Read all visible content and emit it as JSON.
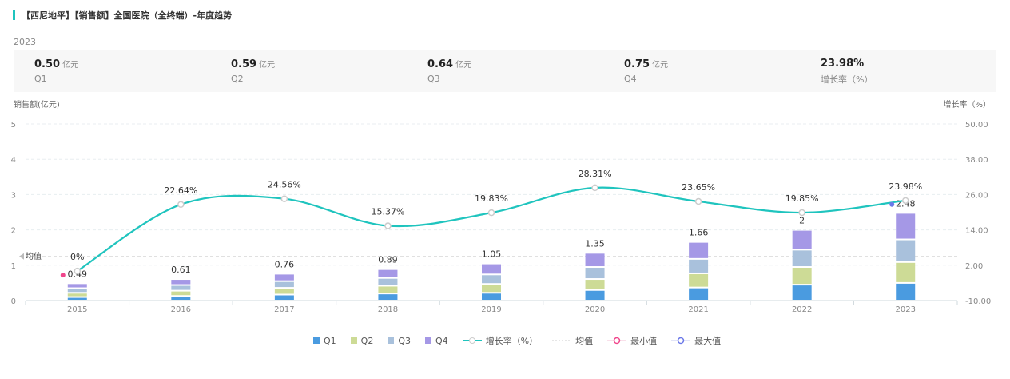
{
  "title": "【西尼地平】【销售额】全国医院（全终端）-年度趋势",
  "summary": {
    "year": "2023",
    "unit": "亿元",
    "items": [
      {
        "value": "0.50",
        "unit": "亿元",
        "label": "Q1"
      },
      {
        "value": "0.59",
        "unit": "亿元",
        "label": "Q2"
      },
      {
        "value": "0.64",
        "unit": "亿元",
        "label": "Q3"
      },
      {
        "value": "0.75",
        "unit": "亿元",
        "label": "Q4"
      },
      {
        "value": "23.98%",
        "unit": "",
        "label": "增长率（%）"
      }
    ]
  },
  "chart_data": {
    "type": "bar",
    "ylabel": "销售额(亿元)",
    "y2label": "增长率（%）",
    "ylim": [
      0,
      5
    ],
    "yticks": [
      "0",
      "1",
      "2",
      "3",
      "4",
      "5"
    ],
    "y2lim": [
      -10,
      50
    ],
    "y2ticks": [
      "-10.00",
      "2.00",
      "14.00",
      "26.00",
      "38.00",
      "50.00"
    ],
    "categories": [
      "2015",
      "2016",
      "2017",
      "2018",
      "2019",
      "2020",
      "2021",
      "2022",
      "2023"
    ],
    "series": [
      {
        "name": "Q1",
        "color": "#4a9be0",
        "values": [
          0.1,
          0.13,
          0.17,
          0.2,
          0.22,
          0.3,
          0.37,
          0.45,
          0.5
        ]
      },
      {
        "name": "Q2",
        "color": "#cddb96",
        "values": [
          0.12,
          0.15,
          0.19,
          0.22,
          0.25,
          0.31,
          0.4,
          0.5,
          0.59
        ]
      },
      {
        "name": "Q3",
        "color": "#a9c1dc",
        "values": [
          0.13,
          0.16,
          0.19,
          0.22,
          0.27,
          0.34,
          0.41,
          0.49,
          0.64
        ]
      },
      {
        "name": "Q4",
        "color": "#a598e6",
        "values": [
          0.14,
          0.17,
          0.21,
          0.25,
          0.31,
          0.4,
          0.48,
          0.56,
          0.75
        ]
      }
    ],
    "totals": [
      "0.49",
      "0.61",
      "0.76",
      "0.89",
      "1.05",
      "1.35",
      "1.66",
      "2",
      "2.48"
    ],
    "growth": {
      "name": "增长率（%）",
      "color": "#1fc4be",
      "values": [
        0,
        22.64,
        24.56,
        15.37,
        19.83,
        28.31,
        23.65,
        19.85,
        23.98
      ],
      "labels": [
        "0%",
        "22.64%",
        "24.56%",
        "15.37%",
        "19.83%",
        "28.31%",
        "23.65%",
        "19.85%",
        "23.98%"
      ]
    },
    "mean": {
      "name": "均值",
      "value": 1.25,
      "label": "均值"
    },
    "min": {
      "name": "最小值",
      "color": "#f0468c"
    },
    "max": {
      "name": "最大值",
      "color": "#6b78e8"
    },
    "legend_position": "bottom"
  }
}
